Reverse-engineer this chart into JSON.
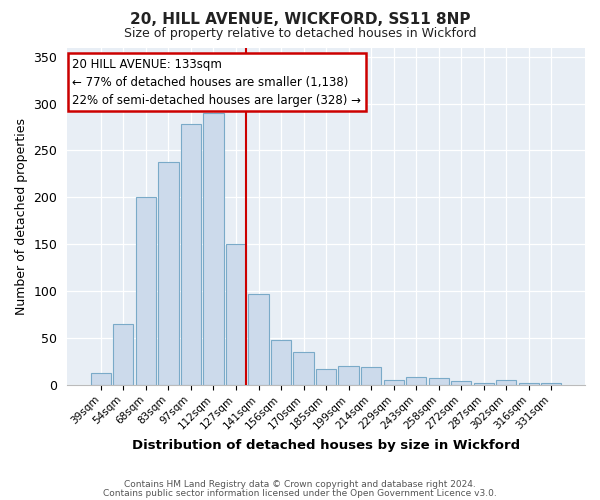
{
  "title": "20, HILL AVENUE, WICKFORD, SS11 8NP",
  "subtitle": "Size of property relative to detached houses in Wickford",
  "xlabel": "Distribution of detached houses by size in Wickford",
  "ylabel": "Number of detached properties",
  "bar_labels": [
    "39sqm",
    "54sqm",
    "68sqm",
    "83sqm",
    "97sqm",
    "112sqm",
    "127sqm",
    "141sqm",
    "156sqm",
    "170sqm",
    "185sqm",
    "199sqm",
    "214sqm",
    "229sqm",
    "243sqm",
    "258sqm",
    "272sqm",
    "287sqm",
    "302sqm",
    "316sqm",
    "331sqm"
  ],
  "bar_values": [
    12,
    65,
    200,
    238,
    278,
    290,
    150,
    97,
    48,
    35,
    17,
    20,
    19,
    5,
    8,
    7,
    4,
    2,
    5,
    2,
    2
  ],
  "bar_color": "#ccdaeb",
  "bar_edge_color": "#7aaac8",
  "vline_color": "#cc0000",
  "annotation_title": "20 HILL AVENUE: 133sqm",
  "annotation_line1": "← 77% of detached houses are smaller (1,138)",
  "annotation_line2": "22% of semi-detached houses are larger (328) →",
  "annotation_box_color": "#ffffff",
  "annotation_box_edge": "#cc0000",
  "ylim": [
    0,
    360
  ],
  "yticks": [
    0,
    50,
    100,
    150,
    200,
    250,
    300,
    350
  ],
  "footer1": "Contains HM Land Registry data © Crown copyright and database right 2024.",
  "footer2": "Contains public sector information licensed under the Open Government Licence v3.0.",
  "bg_color": "#ffffff",
  "plot_bg_color": "#e8eef5",
  "grid_color": "#ffffff"
}
